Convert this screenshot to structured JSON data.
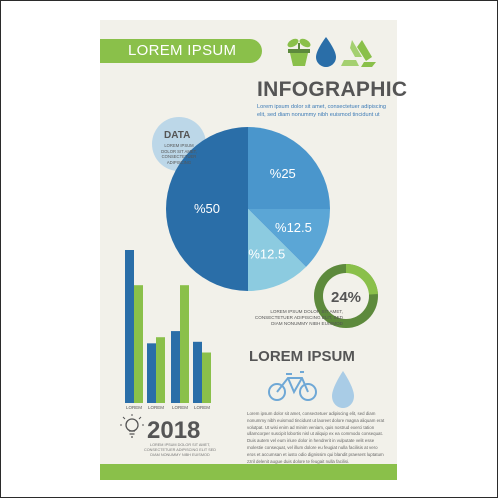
{
  "banner": {
    "text": "LOREM IPSUM"
  },
  "header": {
    "title": "INFOGRAPHIC",
    "subtitle": "Lorem ipsum dolor sit amet, consectetuer adipiscing elit, sed diam nonummy nibh euismod tincidunt ut"
  },
  "data_bubble": {
    "title": "DATA",
    "text": "LOREM IPSUM DOLOR SIT AMET, CONSECTETUER ADIPISCING"
  },
  "ring": {
    "label": "24%",
    "value": 24
  },
  "pie_caption": "LOREM IPSUM DOLOR SIT AMET, CONSECTETUER ADIPISCING ELIT, SED DIAM NONUMMY NIBH EUISMOD",
  "section2": {
    "title": "LOREM IPSUM"
  },
  "year_block": {
    "year": "2018",
    "text": "LOREM IPSUM DOLOR SIT AMET, CONSECTETUER ADIPISCING ELIT SED DIAM NONUMMY NIBH EUISMOD"
  },
  "bottom_text": "Lorem ipsum dolor sit amet, consectetuer adipiscing elit, sed diam nonummy nibh euismod tincidunt ut laoreet dolore magna aliquam erat volutpat. Ut wisi enim ad minim veniam, quis nostrud exerci tation ullamcorper suscipit lobortis nisl ut aliquip ex ea commodo consequat. Duis autem vel eum iriure dolor in hendrerit in vulputate velit esse molestie consequat, vel illum dolore eu feugiat nulla facilisis at vero eros et accumsan et iusto odio dignissim qui blandit praesent luptatum zzril delenit augue duis dolore te feugait nulla facilisi.",
  "icons": [
    "plant-pot-icon",
    "water-drop-icon",
    "recycle-icon",
    "bicycle-icon",
    "water-drop-icon",
    "light-bulb-icon"
  ],
  "colors": {
    "dark_blue": "#2a6ea8",
    "mid_blue": "#4a96cc",
    "light_blue": "#8ccbe0",
    "green": "#8ac04a",
    "dark_green": "#5d8a3c",
    "background": "#f2f1ea"
  },
  "chart_data": [
    {
      "type": "pie",
      "slices": [
        {
          "label": "%50",
          "value": 50,
          "color": "#2a6ea8"
        },
        {
          "label": "%25",
          "value": 25,
          "color": "#4a96cc"
        },
        {
          "label": "%12.5",
          "value": 12.5,
          "color": "#5ba6d6"
        },
        {
          "label": "%12.5",
          "value": 12.5,
          "color": "#8ccbe0"
        }
      ]
    },
    {
      "type": "bar",
      "categories": [
        "LOREM",
        "LOREM",
        "LOREM",
        "LOREM"
      ],
      "series": [
        {
          "values": [
            100,
            39,
            47,
            40
          ],
          "color": "#2a6ea8"
        },
        {
          "values": [
            77,
            43,
            77,
            33
          ],
          "color": "#8ac04a"
        }
      ],
      "ylim": [
        0,
        100
      ]
    }
  ]
}
